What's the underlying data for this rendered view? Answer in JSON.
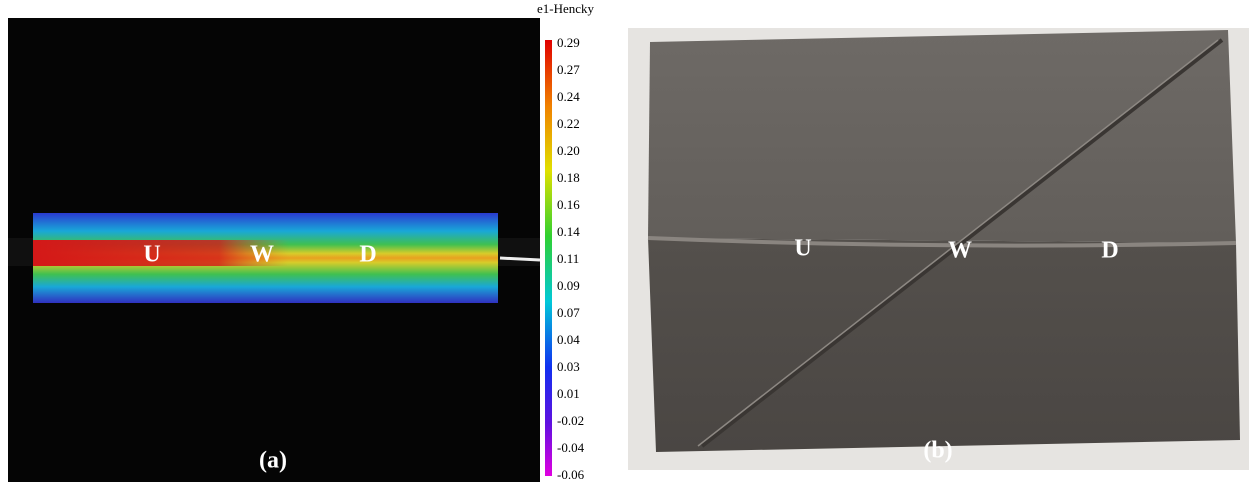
{
  "panel_a": {
    "labels": [
      "U",
      "W",
      "D"
    ],
    "caption": "(a)",
    "colorbar": {
      "title": "e1-Hencky",
      "ticks": [
        "0.29",
        "0.27",
        "0.24",
        "0.22",
        "0.20",
        "0.18",
        "0.16",
        "0.14",
        "0.11",
        "0.09",
        "0.07",
        "0.04",
        "0.03",
        "0.01",
        "-0.02",
        "-0.04",
        "-0.06"
      ]
    }
  },
  "panel_b": {
    "labels": [
      "U",
      "W",
      "D"
    ],
    "caption": "(b)"
  }
}
